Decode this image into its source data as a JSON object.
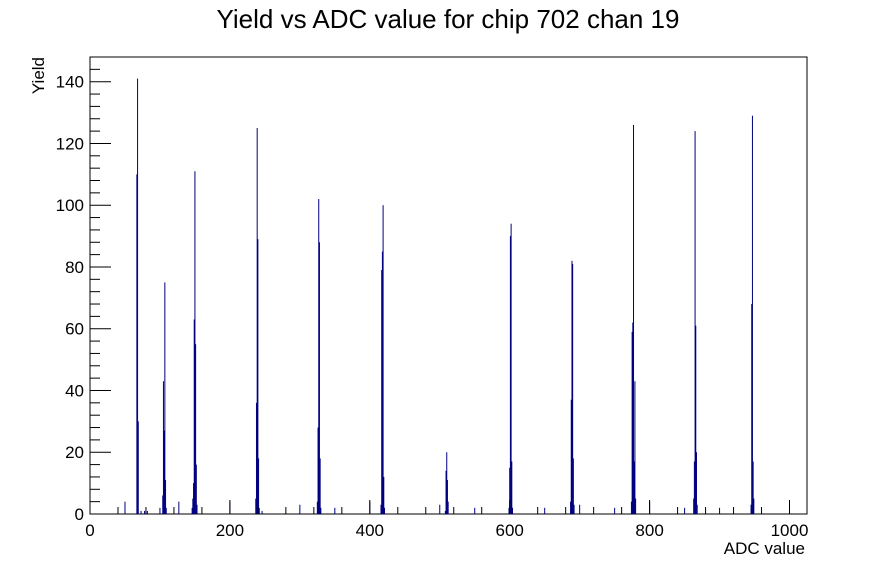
{
  "chart_data": {
    "type": "bar",
    "title": "Yield vs ADC value for chip 702 chan 19",
    "xlabel": "ADC value",
    "ylabel": "Yield",
    "xlim": [
      0,
      1025
    ],
    "ylim": [
      0,
      148
    ],
    "xticks": [
      0,
      200,
      400,
      600,
      800,
      1000
    ],
    "yticks": [
      0,
      20,
      40,
      60,
      80,
      100,
      120,
      140
    ],
    "grid": false,
    "bin_width": 1,
    "color": "#00007f",
    "bins": [
      {
        "x": 50,
        "y": 4
      },
      {
        "x": 67,
        "y": 110
      },
      {
        "x": 68,
        "y": 141
      },
      {
        "x": 69,
        "y": 30
      },
      {
        "x": 73,
        "y": 1
      },
      {
        "x": 78,
        "y": 1
      },
      {
        "x": 82,
        "y": 1
      },
      {
        "x": 100,
        "y": 2
      },
      {
        "x": 104,
        "y": 6
      },
      {
        "x": 105,
        "y": 43
      },
      {
        "x": 106,
        "y": 27
      },
      {
        "x": 107,
        "y": 75
      },
      {
        "x": 108,
        "y": 11
      },
      {
        "x": 109,
        "y": 2
      },
      {
        "x": 127,
        "y": 4
      },
      {
        "x": 146,
        "y": 2
      },
      {
        "x": 147,
        "y": 5
      },
      {
        "x": 148,
        "y": 10
      },
      {
        "x": 149,
        "y": 63
      },
      {
        "x": 150,
        "y": 111
      },
      {
        "x": 151,
        "y": 55
      },
      {
        "x": 152,
        "y": 16
      },
      {
        "x": 153,
        "y": 3
      },
      {
        "x": 200,
        "y": 4
      },
      {
        "x": 237,
        "y": 5
      },
      {
        "x": 238,
        "y": 36
      },
      {
        "x": 239,
        "y": 125
      },
      {
        "x": 240,
        "y": 89
      },
      {
        "x": 241,
        "y": 18
      },
      {
        "x": 242,
        "y": 2
      },
      {
        "x": 246,
        "y": 1
      },
      {
        "x": 300,
        "y": 3
      },
      {
        "x": 325,
        "y": 4
      },
      {
        "x": 326,
        "y": 28
      },
      {
        "x": 327,
        "y": 102
      },
      {
        "x": 328,
        "y": 88
      },
      {
        "x": 329,
        "y": 18
      },
      {
        "x": 330,
        "y": 2
      },
      {
        "x": 350,
        "y": 2
      },
      {
        "x": 400,
        "y": 4
      },
      {
        "x": 416,
        "y": 3
      },
      {
        "x": 417,
        "y": 79
      },
      {
        "x": 418,
        "y": 85
      },
      {
        "x": 419,
        "y": 100
      },
      {
        "x": 420,
        "y": 12
      },
      {
        "x": 421,
        "y": 2
      },
      {
        "x": 500,
        "y": 3
      },
      {
        "x": 508,
        "y": 1
      },
      {
        "x": 509,
        "y": 14
      },
      {
        "x": 510,
        "y": 20
      },
      {
        "x": 511,
        "y": 11
      },
      {
        "x": 512,
        "y": 4
      },
      {
        "x": 550,
        "y": 2
      },
      {
        "x": 599,
        "y": 2
      },
      {
        "x": 600,
        "y": 15
      },
      {
        "x": 601,
        "y": 90
      },
      {
        "x": 602,
        "y": 94
      },
      {
        "x": 603,
        "y": 17
      },
      {
        "x": 604,
        "y": 2
      },
      {
        "x": 650,
        "y": 2
      },
      {
        "x": 687,
        "y": 4
      },
      {
        "x": 688,
        "y": 37
      },
      {
        "x": 689,
        "y": 82
      },
      {
        "x": 690,
        "y": 81
      },
      {
        "x": 691,
        "y": 18
      },
      {
        "x": 692,
        "y": 3
      },
      {
        "x": 700,
        "y": 3
      },
      {
        "x": 750,
        "y": 2
      },
      {
        "x": 774,
        "y": 4
      },
      {
        "x": 775,
        "y": 59
      },
      {
        "x": 776,
        "y": 62
      },
      {
        "x": 777,
        "y": 126
      },
      {
        "x": 778,
        "y": 17
      },
      {
        "x": 779,
        "y": 43
      },
      {
        "x": 780,
        "y": 5
      },
      {
        "x": 800,
        "y": 4
      },
      {
        "x": 850,
        "y": 2
      },
      {
        "x": 863,
        "y": 5
      },
      {
        "x": 864,
        "y": 17
      },
      {
        "x": 865,
        "y": 124
      },
      {
        "x": 866,
        "y": 61
      },
      {
        "x": 867,
        "y": 20
      },
      {
        "x": 868,
        "y": 3
      },
      {
        "x": 900,
        "y": 2
      },
      {
        "x": 945,
        "y": 3
      },
      {
        "x": 946,
        "y": 68
      },
      {
        "x": 947,
        "y": 129
      },
      {
        "x": 948,
        "y": 17
      },
      {
        "x": 949,
        "y": 5
      },
      {
        "x": 1000,
        "y": 4
      }
    ]
  }
}
